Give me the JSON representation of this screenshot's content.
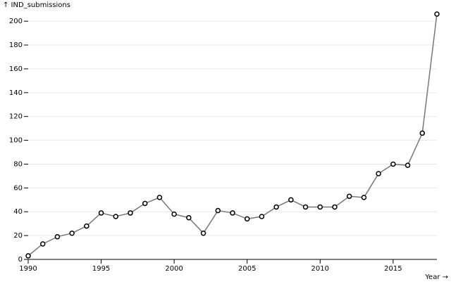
{
  "chart_data": {
    "type": "line",
    "y_label": "↑ IND_submissions",
    "x_label": "Year →",
    "x": [
      1990,
      1991,
      1992,
      1993,
      1994,
      1995,
      1996,
      1997,
      1998,
      1999,
      2000,
      2001,
      2002,
      2003,
      2004,
      2005,
      2006,
      2007,
      2008,
      2009,
      2010,
      2011,
      2012,
      2013,
      2014,
      2015,
      2016,
      2017,
      2018
    ],
    "series": [
      {
        "color": "#777777",
        "values": [
          3,
          13,
          19,
          22,
          28,
          39,
          36,
          39,
          47,
          52,
          38,
          35,
          22,
          41,
          39,
          34,
          36,
          44,
          50,
          44,
          44,
          44,
          53,
          52,
          72,
          80,
          79,
          106,
          206
        ]
      }
    ],
    "xlim": [
      1990,
      2018
    ],
    "xticks": [
      1990,
      1995,
      2000,
      2005,
      2010,
      2015
    ],
    "ylim": [
      0,
      206
    ],
    "yticks": [
      0,
      20,
      40,
      60,
      80,
      100,
      120,
      140,
      160,
      180,
      200
    ],
    "grid": true
  }
}
